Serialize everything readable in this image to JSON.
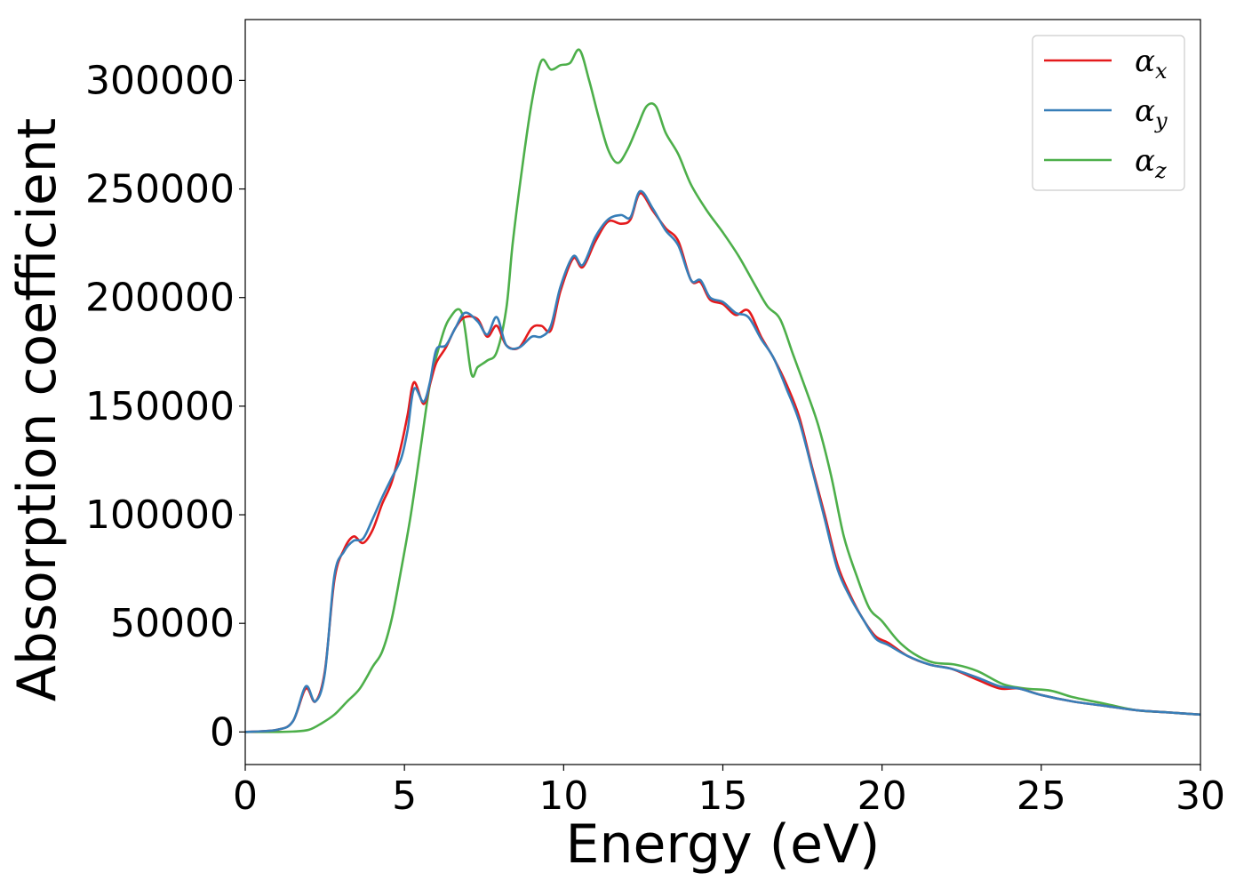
{
  "chart_data": {
    "type": "line",
    "title": "",
    "xlabel": "Energy (eV)",
    "ylabel": "Absorption coefficient",
    "xlim": [
      0,
      30
    ],
    "ylim": [
      -15000,
      328000
    ],
    "xticks": [
      0,
      5,
      10,
      15,
      20,
      25,
      30
    ],
    "yticks": [
      0,
      50000,
      100000,
      150000,
      200000,
      250000,
      300000
    ],
    "grid": false,
    "legend_position": "top-right",
    "series": [
      {
        "name": "α",
        "subscript": "x",
        "color": "#e41a1c",
        "points": [
          [
            0,
            0
          ],
          [
            1,
            1000
          ],
          [
            1.5,
            5000
          ],
          [
            1.9,
            20000
          ],
          [
            2.2,
            14000
          ],
          [
            2.5,
            28000
          ],
          [
            2.8,
            70000
          ],
          [
            3.1,
            84000
          ],
          [
            3.4,
            90000
          ],
          [
            3.7,
            87000
          ],
          [
            4.0,
            93000
          ],
          [
            4.3,
            105000
          ],
          [
            4.6,
            115000
          ],
          [
            4.9,
            132000
          ],
          [
            5.1,
            146000
          ],
          [
            5.3,
            161000
          ],
          [
            5.6,
            151000
          ],
          [
            5.8,
            160000
          ],
          [
            6.0,
            170000
          ],
          [
            6.3,
            177000
          ],
          [
            6.6,
            186000
          ],
          [
            6.9,
            191000
          ],
          [
            7.3,
            190000
          ],
          [
            7.6,
            182000
          ],
          [
            7.9,
            187000
          ],
          [
            8.2,
            178000
          ],
          [
            8.6,
            177000
          ],
          [
            9.0,
            186000
          ],
          [
            9.3,
            187000
          ],
          [
            9.6,
            185000
          ],
          [
            9.9,
            203000
          ],
          [
            10.3,
            218000
          ],
          [
            10.6,
            214000
          ],
          [
            11.0,
            226000
          ],
          [
            11.4,
            235000
          ],
          [
            11.8,
            234000
          ],
          [
            12.1,
            236000
          ],
          [
            12.4,
            248000
          ],
          [
            12.8,
            240000
          ],
          [
            13.2,
            232000
          ],
          [
            13.6,
            226000
          ],
          [
            14.0,
            208000
          ],
          [
            14.3,
            207000
          ],
          [
            14.6,
            199000
          ],
          [
            15.0,
            197000
          ],
          [
            15.4,
            192000
          ],
          [
            15.8,
            194000
          ],
          [
            16.2,
            182000
          ],
          [
            16.6,
            172000
          ],
          [
            17.0,
            160000
          ],
          [
            17.4,
            145000
          ],
          [
            17.8,
            122000
          ],
          [
            18.2,
            100000
          ],
          [
            18.6,
            77000
          ],
          [
            19.0,
            63000
          ],
          [
            19.4,
            52000
          ],
          [
            19.8,
            44000
          ],
          [
            20.2,
            41000
          ],
          [
            20.8,
            35000
          ],
          [
            21.5,
            31000
          ],
          [
            22.2,
            29000
          ],
          [
            23.0,
            24000
          ],
          [
            23.7,
            20000
          ],
          [
            24.3,
            20000
          ],
          [
            25.0,
            17000
          ],
          [
            26.0,
            14000
          ],
          [
            27.0,
            12000
          ],
          [
            28.0,
            10000
          ],
          [
            29.0,
            9000
          ],
          [
            30,
            8000
          ]
        ]
      },
      {
        "name": "α",
        "subscript": "y",
        "color": "#377eb8",
        "points": [
          [
            0,
            0
          ],
          [
            1,
            1000
          ],
          [
            1.5,
            5000
          ],
          [
            1.9,
            21000
          ],
          [
            2.2,
            14000
          ],
          [
            2.5,
            27000
          ],
          [
            2.8,
            72000
          ],
          [
            3.1,
            83000
          ],
          [
            3.4,
            88000
          ],
          [
            3.7,
            89000
          ],
          [
            4.0,
            98000
          ],
          [
            4.3,
            108000
          ],
          [
            4.6,
            117000
          ],
          [
            4.9,
            126000
          ],
          [
            5.1,
            139000
          ],
          [
            5.3,
            158000
          ],
          [
            5.6,
            152000
          ],
          [
            5.8,
            161000
          ],
          [
            6.0,
            176000
          ],
          [
            6.3,
            178000
          ],
          [
            6.6,
            186000
          ],
          [
            6.9,
            193000
          ],
          [
            7.3,
            189000
          ],
          [
            7.6,
            183000
          ],
          [
            7.9,
            191000
          ],
          [
            8.2,
            178000
          ],
          [
            8.6,
            177000
          ],
          [
            9.0,
            182000
          ],
          [
            9.3,
            182000
          ],
          [
            9.6,
            187000
          ],
          [
            9.9,
            205000
          ],
          [
            10.3,
            219000
          ],
          [
            10.6,
            215000
          ],
          [
            11.0,
            228000
          ],
          [
            11.4,
            236000
          ],
          [
            11.8,
            238000
          ],
          [
            12.1,
            237000
          ],
          [
            12.4,
            249000
          ],
          [
            12.8,
            241000
          ],
          [
            13.2,
            231000
          ],
          [
            13.6,
            224000
          ],
          [
            14.0,
            208000
          ],
          [
            14.3,
            208000
          ],
          [
            14.6,
            200000
          ],
          [
            15.0,
            198000
          ],
          [
            15.4,
            193000
          ],
          [
            15.8,
            191000
          ],
          [
            16.2,
            181000
          ],
          [
            16.6,
            172000
          ],
          [
            17.0,
            158000
          ],
          [
            17.4,
            143000
          ],
          [
            17.8,
            121000
          ],
          [
            18.2,
            98000
          ],
          [
            18.6,
            75000
          ],
          [
            19.0,
            62000
          ],
          [
            19.4,
            52000
          ],
          [
            19.8,
            43000
          ],
          [
            20.2,
            40000
          ],
          [
            20.8,
            35000
          ],
          [
            21.5,
            31000
          ],
          [
            22.2,
            29000
          ],
          [
            23.0,
            25000
          ],
          [
            23.7,
            21000
          ],
          [
            24.3,
            20000
          ],
          [
            25.0,
            17000
          ],
          [
            26.0,
            14000
          ],
          [
            27.0,
            12000
          ],
          [
            28.0,
            10000
          ],
          [
            29.0,
            9000
          ],
          [
            30,
            8000
          ]
        ]
      },
      {
        "name": "α",
        "subscript": "z",
        "color": "#4daf4a",
        "points": [
          [
            0,
            0
          ],
          [
            1,
            0
          ],
          [
            1.5,
            200
          ],
          [
            2.0,
            1000
          ],
          [
            2.4,
            4000
          ],
          [
            2.8,
            8000
          ],
          [
            3.2,
            14000
          ],
          [
            3.6,
            20000
          ],
          [
            4.0,
            30000
          ],
          [
            4.3,
            37000
          ],
          [
            4.6,
            52000
          ],
          [
            4.9,
            75000
          ],
          [
            5.2,
            100000
          ],
          [
            5.5,
            130000
          ],
          [
            5.8,
            160000
          ],
          [
            6.1,
            178000
          ],
          [
            6.4,
            190000
          ],
          [
            6.8,
            193000
          ],
          [
            7.1,
            165000
          ],
          [
            7.3,
            168000
          ],
          [
            7.6,
            171000
          ],
          [
            7.9,
            175000
          ],
          [
            8.2,
            195000
          ],
          [
            8.4,
            225000
          ],
          [
            8.7,
            260000
          ],
          [
            9.0,
            290000
          ],
          [
            9.3,
            309000
          ],
          [
            9.6,
            305000
          ],
          [
            9.9,
            307000
          ],
          [
            10.2,
            308000
          ],
          [
            10.5,
            314000
          ],
          [
            10.8,
            300000
          ],
          [
            11.1,
            283000
          ],
          [
            11.4,
            268000
          ],
          [
            11.7,
            262000
          ],
          [
            12.0,
            268000
          ],
          [
            12.3,
            278000
          ],
          [
            12.6,
            288000
          ],
          [
            12.9,
            288000
          ],
          [
            13.2,
            276000
          ],
          [
            13.6,
            266000
          ],
          [
            14.0,
            252000
          ],
          [
            14.5,
            240000
          ],
          [
            15.0,
            230000
          ],
          [
            15.5,
            219000
          ],
          [
            16.0,
            206000
          ],
          [
            16.4,
            196000
          ],
          [
            16.8,
            190000
          ],
          [
            17.2,
            174000
          ],
          [
            17.6,
            158000
          ],
          [
            18.0,
            141000
          ],
          [
            18.4,
            118000
          ],
          [
            18.8,
            90000
          ],
          [
            19.2,
            72000
          ],
          [
            19.6,
            57000
          ],
          [
            20.0,
            51000
          ],
          [
            20.5,
            42000
          ],
          [
            21.0,
            36000
          ],
          [
            21.6,
            32000
          ],
          [
            22.3,
            31000
          ],
          [
            23.0,
            28000
          ],
          [
            23.8,
            22000
          ],
          [
            24.5,
            20000
          ],
          [
            25.3,
            19000
          ],
          [
            26.0,
            16000
          ],
          [
            27.0,
            13000
          ],
          [
            28.0,
            10000
          ],
          [
            29.0,
            9000
          ],
          [
            30,
            8000
          ]
        ]
      }
    ]
  }
}
